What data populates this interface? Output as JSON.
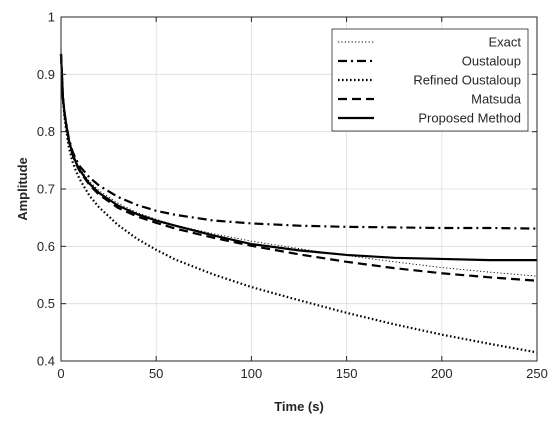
{
  "chart_data": {
    "type": "line",
    "title": "",
    "xlabel": "Time (s)",
    "ylabel": "Amplitude",
    "xlim": [
      0,
      250
    ],
    "ylim": [
      0.4,
      1
    ],
    "xticks": [
      0,
      50,
      100,
      150,
      200,
      250
    ],
    "yticks": [
      0.4,
      0.5,
      0.6,
      0.7,
      0.8,
      0.9,
      1
    ],
    "xtick_labels": [
      "0",
      "50",
      "100",
      "150",
      "200",
      "250"
    ],
    "ytick_labels": [
      "0.4",
      "0.5",
      "0.6",
      "0.7",
      "0.8",
      "0.9",
      "1"
    ],
    "grid": true,
    "legend_position": "top-right",
    "series": [
      {
        "name": "Exact",
        "style": "dotted-thin",
        "x": [
          0,
          1,
          2,
          4,
          6,
          8,
          10,
          15,
          20,
          30,
          40,
          50,
          60,
          80,
          100,
          125,
          150,
          175,
          200,
          225,
          250
        ],
        "y": [
          0.95,
          0.87,
          0.835,
          0.79,
          0.765,
          0.748,
          0.735,
          0.713,
          0.697,
          0.675,
          0.659,
          0.647,
          0.637,
          0.622,
          0.609,
          0.596,
          0.584,
          0.573,
          0.563,
          0.555,
          0.548
        ]
      },
      {
        "name": "Oustaloup",
        "style": "dashdot",
        "x": [
          0,
          1,
          2,
          4,
          6,
          8,
          10,
          15,
          20,
          30,
          40,
          50,
          60,
          80,
          100,
          125,
          150,
          175,
          200,
          225,
          250
        ],
        "y": [
          0.935,
          0.86,
          0.83,
          0.79,
          0.766,
          0.751,
          0.739,
          0.72,
          0.706,
          0.686,
          0.672,
          0.662,
          0.655,
          0.645,
          0.64,
          0.636,
          0.634,
          0.633,
          0.632,
          0.632,
          0.631
        ]
      },
      {
        "name": "Refined Oustaloup",
        "style": "dotted-thick",
        "x": [
          0,
          1,
          2,
          4,
          6,
          8,
          10,
          15,
          20,
          30,
          40,
          50,
          60,
          80,
          100,
          125,
          150,
          175,
          200,
          225,
          250
        ],
        "y": [
          0.935,
          0.855,
          0.82,
          0.775,
          0.748,
          0.73,
          0.716,
          0.688,
          0.668,
          0.637,
          0.613,
          0.594,
          0.577,
          0.551,
          0.529,
          0.506,
          0.484,
          0.464,
          0.446,
          0.43,
          0.415
        ]
      },
      {
        "name": "Matsuda",
        "style": "dashed",
        "x": [
          0,
          1,
          2,
          4,
          6,
          8,
          10,
          15,
          20,
          30,
          40,
          50,
          60,
          80,
          100,
          125,
          150,
          175,
          200,
          225,
          250
        ],
        "y": [
          0.935,
          0.86,
          0.827,
          0.785,
          0.76,
          0.743,
          0.73,
          0.707,
          0.69,
          0.667,
          0.652,
          0.641,
          0.631,
          0.615,
          0.601,
          0.586,
          0.573,
          0.562,
          0.553,
          0.546,
          0.54
        ]
      },
      {
        "name": "Proposed Method",
        "style": "solid",
        "x": [
          0,
          1,
          2,
          4,
          6,
          8,
          10,
          15,
          20,
          30,
          40,
          50,
          60,
          80,
          100,
          125,
          150,
          175,
          200,
          225,
          250
        ],
        "y": [
          0.935,
          0.86,
          0.828,
          0.787,
          0.762,
          0.745,
          0.732,
          0.709,
          0.693,
          0.671,
          0.656,
          0.645,
          0.636,
          0.619,
          0.604,
          0.593,
          0.585,
          0.58,
          0.578,
          0.576,
          0.576
        ]
      }
    ]
  }
}
